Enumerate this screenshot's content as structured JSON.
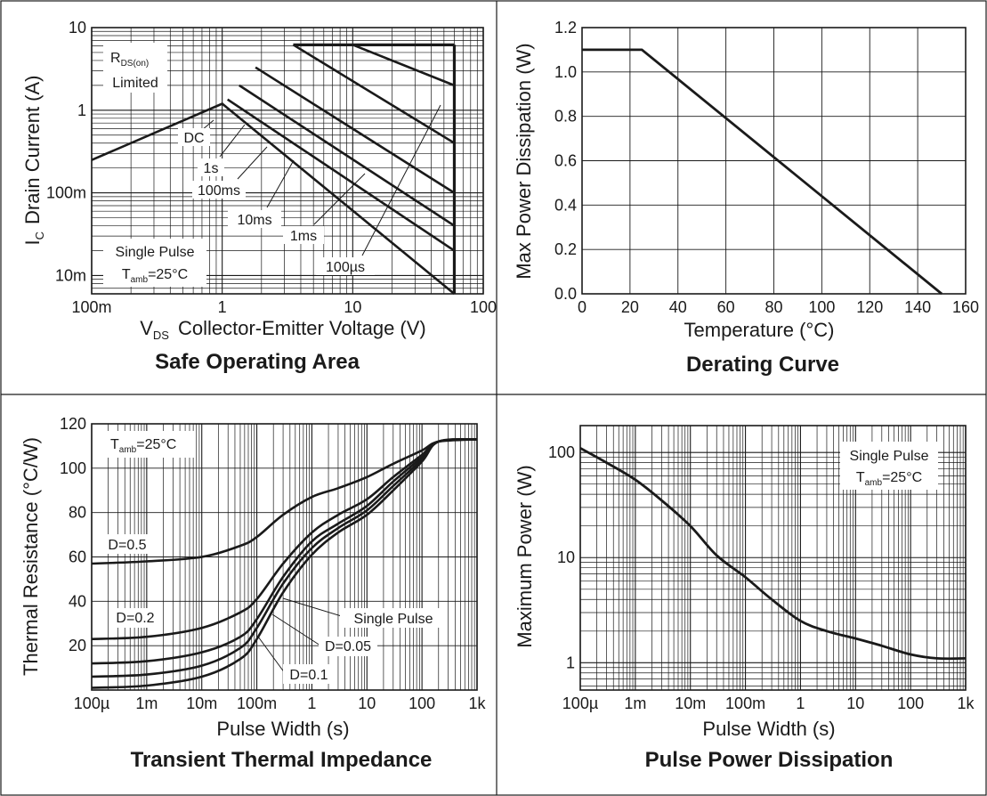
{
  "chart_data": [
    {
      "type": "line",
      "title": "Safe Operating Area",
      "xlabel_main": "V",
      "xlabel_sub": "DS",
      "xlabel_rest": "Collector-Emitter Voltage (V)",
      "ylabel_main": "I",
      "ylabel_sub": "C",
      "ylabel_rest": "Drain Current (A)",
      "x_scale": "log",
      "y_scale": "log",
      "xlim": [
        0.1,
        100
      ],
      "ylim": [
        0.006,
        10
      ],
      "x_ticks": [
        0.1,
        1,
        10,
        100
      ],
      "x_tick_labels": [
        "100m",
        "1",
        "10",
        "100"
      ],
      "y_ticks": [
        0.01,
        0.1,
        1,
        10
      ],
      "y_tick_labels": [
        "10m",
        "100m",
        "1",
        "10"
      ],
      "grid": true,
      "annotations": {
        "rds_line1_main": "R",
        "rds_line1_sub": "DS(on)",
        "rds_line2": "Limited",
        "pulse_line1": "Single Pulse",
        "pulse_line2_main": "T",
        "pulse_line2_sub": "amb",
        "pulse_line2_rest": "=25°C"
      },
      "series": [
        {
          "name": "DC",
          "points": [
            [
              0.1,
              0.25
            ],
            [
              1.0,
              1.2
            ],
            [
              60,
              0.006
            ]
          ]
        },
        {
          "name": "1s",
          "points": [
            [
              1.1,
              1.35
            ],
            [
              60,
              0.02
            ]
          ]
        },
        {
          "name": "100ms",
          "points": [
            [
              1.35,
              2.0
            ],
            [
              60,
              0.04
            ]
          ]
        },
        {
          "name": "10ms",
          "points": [
            [
              1.8,
              3.3
            ],
            [
              60,
              0.1
            ]
          ]
        },
        {
          "name": "1ms",
          "points": [
            [
              3.5,
              6.2
            ],
            [
              60,
              0.4
            ]
          ]
        },
        {
          "name": "100µs",
          "points": [
            [
              10,
              6.2
            ],
            [
              60,
              2.0
            ]
          ]
        }
      ],
      "limits": {
        "current_limit": 6.2,
        "voltage_limit": 60,
        "current_limit_start": 3.5
      }
    },
    {
      "type": "line",
      "title": "Derating Curve",
      "xlabel": "Temperature (°C)",
      "ylabel": "Max Power Dissipation (W)",
      "xlim": [
        0,
        160
      ],
      "ylim": [
        0,
        1.2
      ],
      "x_ticks": [
        0,
        20,
        40,
        60,
        80,
        100,
        120,
        140,
        160
      ],
      "x_tick_labels": [
        "0",
        "20",
        "40",
        "60",
        "80",
        "100",
        "120",
        "140",
        "160"
      ],
      "y_ticks": [
        0,
        0.2,
        0.4,
        0.6,
        0.8,
        1.0,
        1.2
      ],
      "y_tick_labels": [
        "0.0",
        "0.2",
        "0.4",
        "0.6",
        "0.8",
        "1.0",
        "1.2"
      ],
      "grid": true,
      "series": [
        {
          "x": [
            0,
            25,
            150
          ],
          "y": [
            1.1,
            1.1,
            0.0
          ]
        }
      ]
    },
    {
      "type": "line",
      "title": "Transient Thermal Impedance",
      "xlabel": "Pulse Width (s)",
      "ylabel": "Thermal Resistance (°C/W)",
      "x_scale": "log",
      "xlim": [
        0.0001,
        1000
      ],
      "ylim": [
        0,
        120
      ],
      "x_ticks": [
        0.0001,
        0.001,
        0.01,
        0.1,
        1,
        10,
        100,
        1000
      ],
      "x_tick_labels": [
        "100µ",
        "1m",
        "10m",
        "100m",
        "1",
        "10",
        "100",
        "1k"
      ],
      "y_ticks": [
        20,
        40,
        60,
        80,
        100,
        120
      ],
      "y_tick_labels": [
        "20",
        "40",
        "60",
        "80",
        "100",
        "120"
      ],
      "grid": true,
      "annotations": {
        "tamb_main": "T",
        "tamb_sub": "amb",
        "tamb_rest": "=25°C"
      },
      "series": [
        {
          "name": "D=0.5",
          "x": [
            0.0001,
            0.001,
            0.01,
            0.05,
            0.1,
            0.3,
            1,
            3,
            10,
            30,
            100,
            200,
            1000
          ],
          "y": [
            57,
            58,
            60,
            65,
            69,
            79,
            87,
            91,
            96,
            102,
            108,
            112,
            113
          ]
        },
        {
          "name": "D=0.2",
          "x": [
            0.0001,
            0.001,
            0.01,
            0.05,
            0.1,
            0.3,
            1,
            3,
            10,
            30,
            100,
            200,
            1000
          ],
          "y": [
            23,
            24,
            28,
            35,
            41,
            57,
            71,
            79,
            86,
            96,
            106,
            112,
            113
          ]
        },
        {
          "name": "D=0.1",
          "x": [
            0.0001,
            0.001,
            0.01,
            0.05,
            0.1,
            0.3,
            1,
            3,
            10,
            30,
            100,
            200,
            1000
          ],
          "y": [
            12,
            13,
            17,
            24,
            32,
            51,
            67,
            75,
            83,
            94,
            105,
            112,
            113
          ]
        },
        {
          "name": "D=0.05",
          "x": [
            0.0001,
            0.001,
            0.01,
            0.05,
            0.1,
            0.3,
            1,
            3,
            10,
            30,
            100,
            200,
            1000
          ],
          "y": [
            6,
            7,
            11,
            19,
            28,
            48,
            64,
            73,
            81,
            92,
            104,
            112,
            113
          ]
        },
        {
          "name": "Single Pulse",
          "x": [
            0.0001,
            0.001,
            0.01,
            0.05,
            0.1,
            0.3,
            1,
            3,
            10,
            30,
            100,
            200,
            1000
          ],
          "y": [
            1,
            2,
            6,
            14,
            23,
            44,
            61,
            71,
            79,
            90,
            103,
            112,
            113
          ]
        }
      ]
    },
    {
      "type": "line",
      "title": "Pulse Power Dissipation",
      "xlabel": "Pulse Width (s)",
      "ylabel": "Maximum Power (W)",
      "x_scale": "log",
      "y_scale": "log",
      "xlim": [
        0.0001,
        1000
      ],
      "ylim": [
        0.55,
        180
      ],
      "x_ticks": [
        0.0001,
        0.001,
        0.01,
        0.1,
        1,
        10,
        100,
        1000
      ],
      "x_tick_labels": [
        "100µ",
        "1m",
        "10m",
        "100m",
        "1",
        "10",
        "100",
        "1k"
      ],
      "y_ticks": [
        1,
        10,
        100
      ],
      "y_tick_labels": [
        "1",
        "10",
        "100"
      ],
      "grid": true,
      "annotations": {
        "pulse_line1": "Single Pulse",
        "pulse_line2_main": "T",
        "pulse_line2_sub": "amb",
        "pulse_line2_rest": "=25°C"
      },
      "series": [
        {
          "x": [
            0.0001,
            0.0003,
            0.001,
            0.003,
            0.01,
            0.03,
            0.1,
            0.3,
            1,
            3,
            10,
            30,
            100,
            300,
            1000
          ],
          "y": [
            110,
            80,
            55,
            35,
            20,
            10.5,
            6.5,
            4.0,
            2.5,
            2.0,
            1.7,
            1.45,
            1.2,
            1.1,
            1.1
          ]
        }
      ]
    }
  ]
}
